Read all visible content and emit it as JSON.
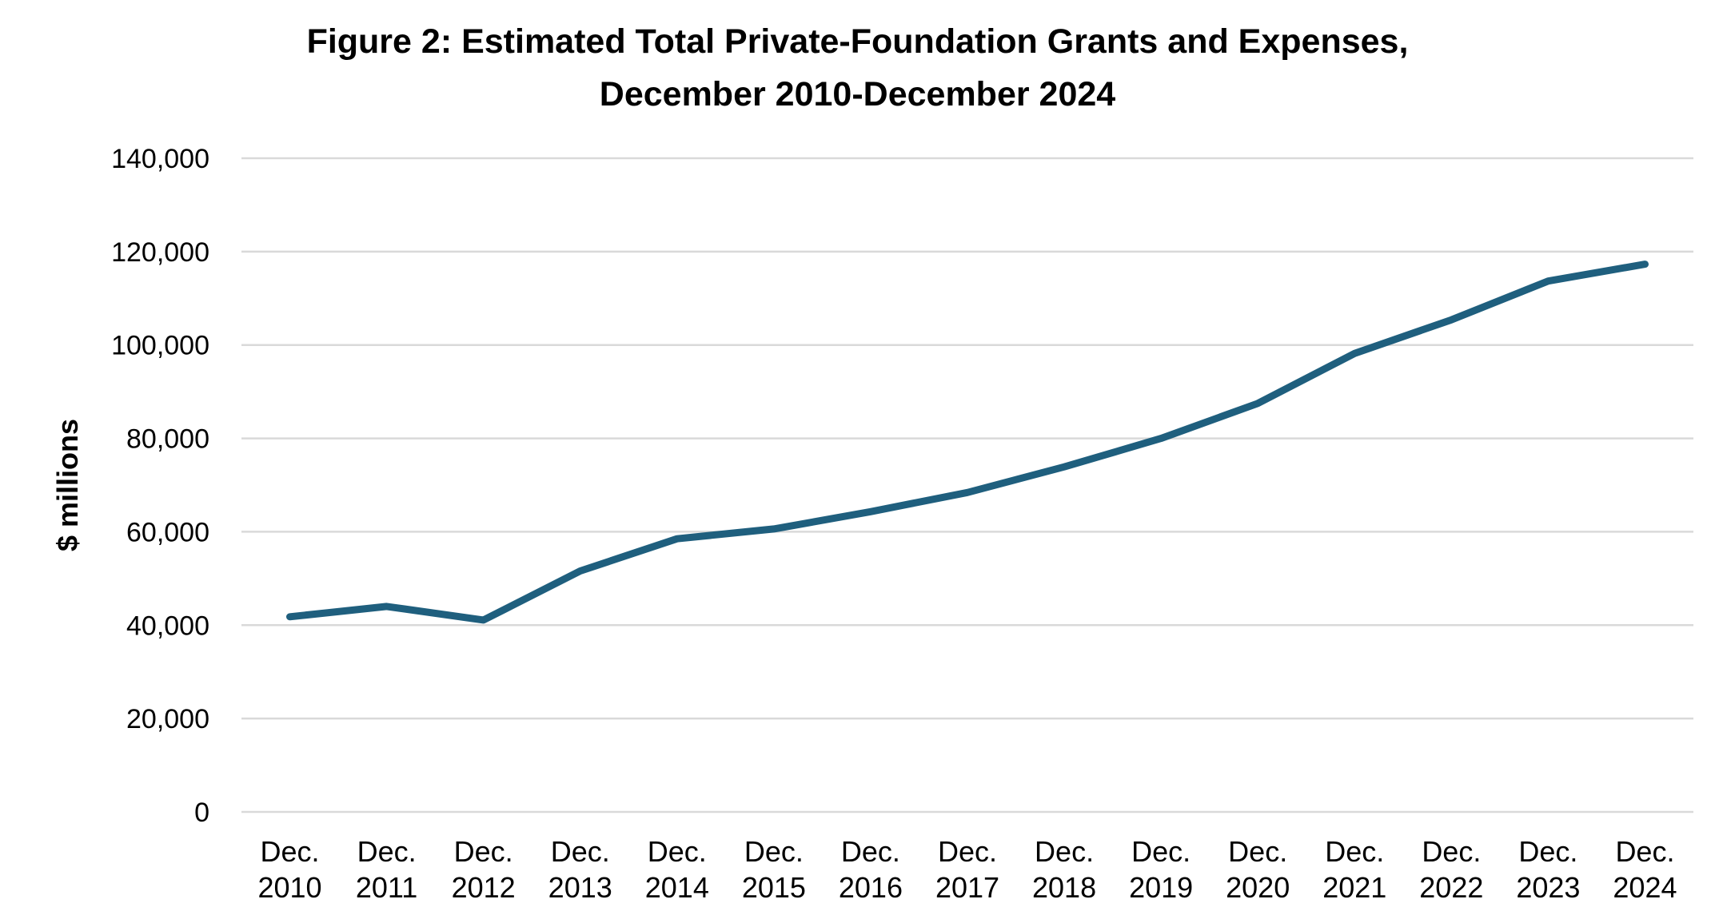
{
  "chart_data": {
    "type": "line",
    "title": "Figure 2: Estimated Total Private-Foundation Grants and Expenses,",
    "subtitle": "December 2010-December 2024",
    "xlabel": "",
    "ylabel": "$ millions",
    "ylim": [
      0,
      140000
    ],
    "yticks": [
      "0",
      "20,000",
      "40,000",
      "60,000",
      "80,000",
      "100,000",
      "120,000",
      "140,000"
    ],
    "categories": [
      [
        "Dec.",
        "2010"
      ],
      [
        "Dec.",
        "2011"
      ],
      [
        "Dec.",
        "2012"
      ],
      [
        "Dec.",
        "2013"
      ],
      [
        "Dec.",
        "2014"
      ],
      [
        "Dec.",
        "2015"
      ],
      [
        "Dec.",
        "2016"
      ],
      [
        "Dec.",
        "2017"
      ],
      [
        "Dec.",
        "2018"
      ],
      [
        "Dec.",
        "2019"
      ],
      [
        "Dec.",
        "2020"
      ],
      [
        "Dec.",
        "2021"
      ],
      [
        "Dec.",
        "2022"
      ],
      [
        "Dec.",
        "2023"
      ],
      [
        "Dec.",
        "2024"
      ]
    ],
    "series": [
      {
        "values": [
          41800,
          44000,
          41100,
          51600,
          58500,
          60600,
          64300,
          68400,
          73900,
          80000,
          87500,
          98200,
          105400,
          113700,
          117300
        ],
        "color": "#1f5f7e"
      }
    ],
    "grid": true,
    "gridColor": "#d9d9d9",
    "legend": "none"
  }
}
